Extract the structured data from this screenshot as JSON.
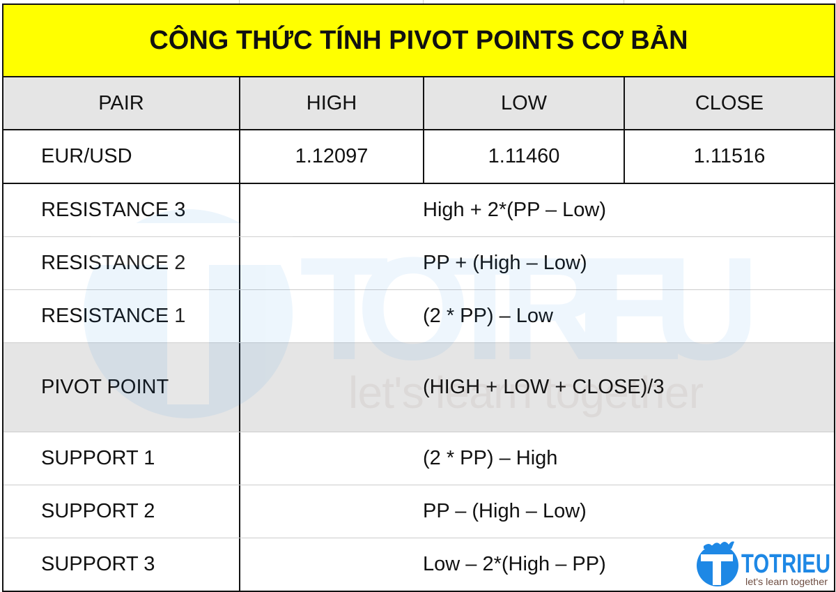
{
  "title": "CÔNG THỨC TÍNH PIVOT POINTS CƠ BẢN",
  "header": [
    "PAIR",
    "HIGH",
    "LOW",
    "CLOSE"
  ],
  "data_row": [
    "EUR/USD",
    "1.12097",
    "1.11460",
    "1.11516"
  ],
  "formulas": [
    {
      "label": "RESISTANCE 3",
      "formula": "High + 2*(PP – Low)"
    },
    {
      "label": "RESISTANCE 2",
      "formula": "PP + (High – Low)"
    },
    {
      "label": "RESISTANCE 1",
      "formula": "(2 * PP) – Low"
    },
    {
      "label": "PIVOT POINT",
      "formula": "(HIGH + LOW + CLOSE)/3"
    },
    {
      "label": "SUPPORT 1",
      "formula": "(2 * PP) – High"
    },
    {
      "label": "SUPPORT 2",
      "formula": "PP – (High – Low)"
    },
    {
      "label": "SUPPORT 3",
      "formula": "Low – 2*(High – PP)"
    }
  ],
  "logo": {
    "brand": "TOTRIEU",
    "tagline": "let's learn together"
  },
  "colors": {
    "title_bg": "#ffff00",
    "header_bg": "#e5e5e5",
    "brand_blue": "#1e88e5",
    "tagline_brown": "#6d4c41"
  }
}
